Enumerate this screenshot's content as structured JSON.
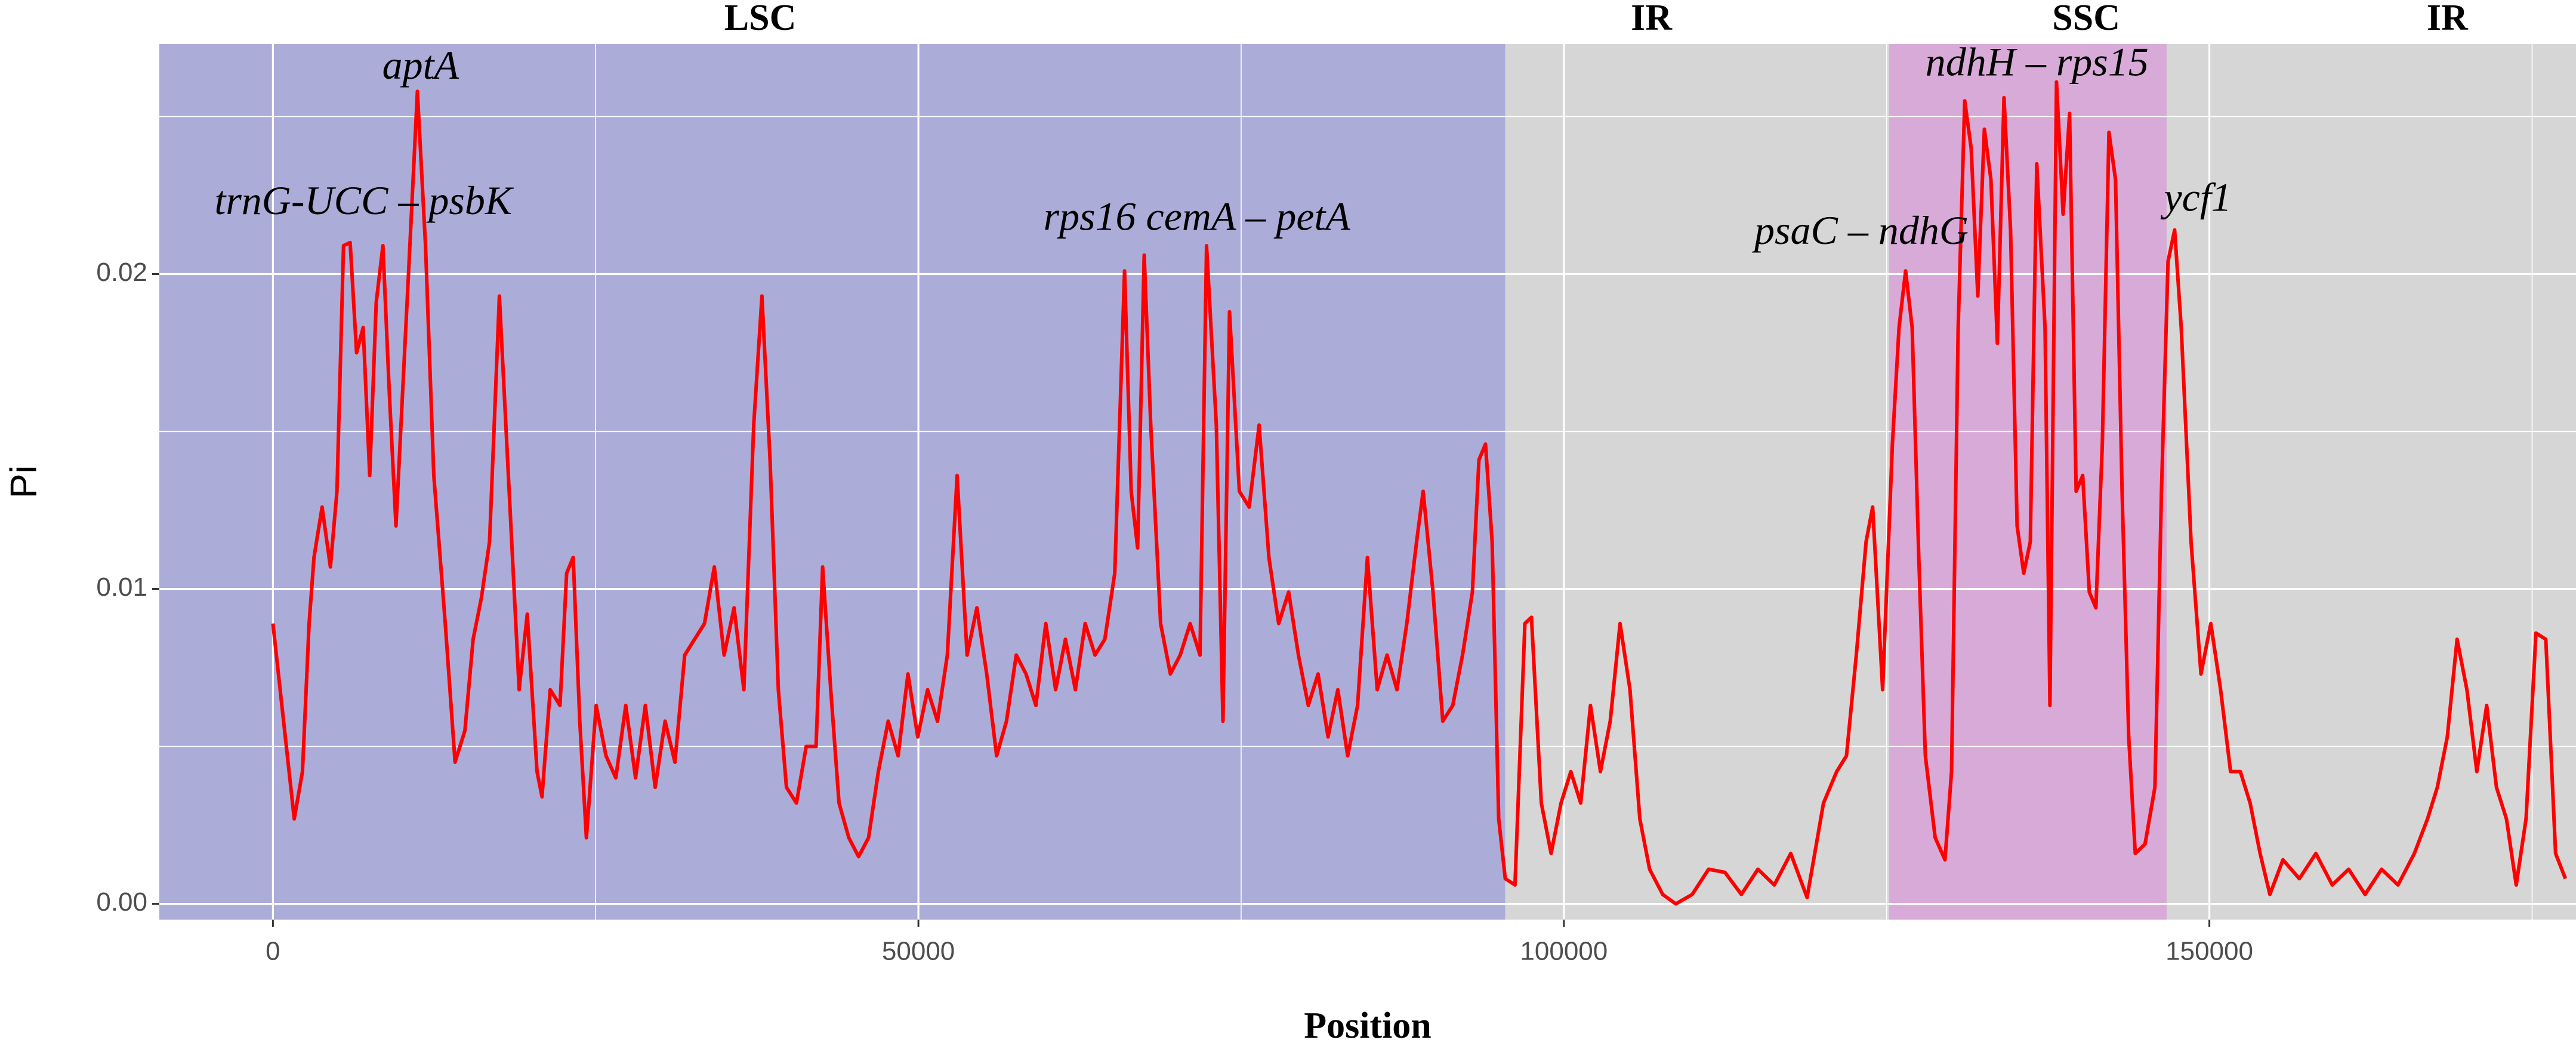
{
  "chart_data": {
    "type": "line",
    "xlabel": "Position",
    "ylabel": "Pi",
    "color": "#ff0000",
    "xlim": [
      -8800,
      178400
    ],
    "ylim": [
      -0.0005,
      0.0273
    ],
    "xticks": [
      0,
      50000,
      100000,
      150000
    ],
    "yticks": [
      {
        "value": 0,
        "label": "0.00"
      },
      0.01,
      0.02
    ],
    "x_minor_ticks": [
      25000,
      75000,
      125000,
      175000
    ],
    "y_minor_ticks": [
      0.005,
      0.015,
      0.025
    ],
    "grid": true,
    "regions": [
      {
        "name": "LSC",
        "start": -8800,
        "end": 95460,
        "label_x": 37750,
        "color": "#acacd9"
      },
      {
        "name": "IR",
        "start": 95460,
        "end": 125200,
        "label_x": 106780,
        "color": "#d6d6d6"
      },
      {
        "name": "SSC",
        "start": 125200,
        "end": 146690,
        "label_x": 140460,
        "color": "#d8aad8"
      },
      {
        "name": "IR",
        "start": 146690,
        "end": 178400,
        "label_x": 168430,
        "color": "#d6d6d6"
      }
    ],
    "annotations": [
      {
        "text": "aptA",
        "x": 11440,
        "y": 0.0265
      },
      {
        "text": "trnG-UCC – psbK",
        "x": 7000,
        "y": 0.0222
      },
      {
        "text": "rps16 cemA – petA",
        "x": 71570,
        "y": 0.0217
      },
      {
        "text": "psaC – ndhG",
        "x": 123050,
        "y": 0.02125
      },
      {
        "text": "ndhH – rps15",
        "x": 136650,
        "y": 0.0266
      },
      {
        "text": "ycf1",
        "x": 149100,
        "y": 0.0223
      }
    ],
    "x": [
      0,
      1650,
      2290,
      2800,
      3180,
      3810,
      4450,
      4960,
      5470,
      5980,
      6480,
      6990,
      7500,
      8000,
      8520,
      9020,
      9530,
      10040,
      10550,
      11190,
      11820,
      12460,
      13350,
      14110,
      14870,
      15510,
      16140,
      16780,
      17540,
      18300,
      19070,
      19700,
      20460,
      20840,
      21480,
      22240,
      22750,
      23260,
      23770,
      24280,
      25040,
      25800,
      26560,
      27330,
      28090,
      28850,
      29610,
      30380,
      31140,
      31900,
      32660,
      33430,
      34190,
      34950,
      35720,
      36480,
      37240,
      37880,
      38510,
      39150,
      39780,
      40550,
      41310,
      42070,
      42580,
      43210,
      43850,
      44610,
      45370,
      46140,
      46900,
      47660,
      48430,
      49190,
      49950,
      50710,
      51480,
      52240,
      53000,
      53770,
      54530,
      55290,
      56060,
      56820,
      57580,
      58340,
      59100,
      59870,
      60630,
      61390,
      62160,
      62920,
      63680,
      64440,
      65210,
      65970,
      66480,
      66980,
      67490,
      68000,
      68760,
      69520,
      70280,
      71050,
      71810,
      72320,
      73080,
      73590,
      74100,
      74860,
      75620,
      76390,
      77150,
      77910,
      78680,
      79440,
      80200,
      80960,
      81730,
      82490,
      83250,
      84020,
      84780,
      85540,
      86300,
      87070,
      87830,
      88590,
      89100,
      89860,
      90620,
      91390,
      92150,
      92910,
      93420,
      93930,
      94440,
      94950,
      95460,
      96210,
      96980,
      97490,
      98250,
      99010,
      99780,
      100540,
      101300,
      102060,
      102830,
      103590,
      104350,
      105120,
      105880,
      106640,
      107650,
      108670,
      109940,
      111210,
      112480,
      113750,
      115030,
      116300,
      117570,
      118840,
      120110,
      121130,
      121890,
      122650,
      123410,
      123920,
      124690,
      125450,
      125960,
      126470,
      126980,
      127490,
      128000,
      128760,
      129520,
      130030,
      130540,
      131050,
      131550,
      132060,
      132570,
      133080,
      133580,
      134090,
      134600,
      135110,
      135620,
      136130,
      136630,
      137270,
      137650,
      138160,
      138670,
      139170,
      139680,
      140190,
      140700,
      141210,
      141710,
      142220,
      142730,
      143240,
      143750,
      144260,
      145020,
      145780,
      146290,
      146800,
      147310,
      147820,
      148580,
      149350,
      150110,
      150870,
      151640,
      152400,
      153160,
      153930,
      154690,
      155700,
      156970,
      158250,
      159520,
      160790,
      162060,
      163340,
      164610,
      165880,
      166900,
      167660,
      168430,
      169190,
      169950,
      170720,
      171480,
      172240,
      173010,
      173770,
      174530,
      175300,
      176060,
      176820,
      177580
    ],
    "values": [
      0.0089,
      0.0027,
      0.0042,
      0.0089,
      0.011,
      0.0126,
      0.0107,
      0.0131,
      0.0209,
      0.021,
      0.0175,
      0.0183,
      0.0136,
      0.0191,
      0.0209,
      0.0162,
      0.012,
      0.0162,
      0.0204,
      0.0258,
      0.0209,
      0.0136,
      0.0089,
      0.0045,
      0.0055,
      0.0084,
      0.0097,
      0.0115,
      0.0193,
      0.0131,
      0.0068,
      0.0092,
      0.0042,
      0.0034,
      0.0068,
      0.0063,
      0.0105,
      0.011,
      0.0058,
      0.0021,
      0.0063,
      0.0047,
      0.004,
      0.0063,
      0.004,
      0.0063,
      0.0037,
      0.0058,
      0.0045,
      0.0079,
      0.0084,
      0.0089,
      0.0107,
      0.0079,
      0.0094,
      0.0068,
      0.0152,
      0.0193,
      0.0141,
      0.0068,
      0.0037,
      0.0032,
      0.005,
      0.005,
      0.0107,
      0.0068,
      0.0032,
      0.0021,
      0.0015,
      0.0021,
      0.0042,
      0.0058,
      0.0047,
      0.0073,
      0.0053,
      0.0068,
      0.0058,
      0.0079,
      0.0136,
      0.0079,
      0.0094,
      0.0073,
      0.0047,
      0.0058,
      0.0079,
      0.0073,
      0.0063,
      0.0089,
      0.0068,
      0.0084,
      0.0068,
      0.0089,
      0.0079,
      0.0084,
      0.0105,
      0.0201,
      0.0131,
      0.0113,
      0.0206,
      0.0152,
      0.0089,
      0.0073,
      0.0079,
      0.0089,
      0.0079,
      0.0209,
      0.0152,
      0.0058,
      0.0188,
      0.0131,
      0.0126,
      0.0152,
      0.011,
      0.0089,
      0.0099,
      0.0079,
      0.0063,
      0.0073,
      0.0053,
      0.0068,
      0.0047,
      0.0063,
      0.011,
      0.0068,
      0.0079,
      0.0068,
      0.0089,
      0.0115,
      0.0131,
      0.0099,
      0.0058,
      0.0063,
      0.0079,
      0.0099,
      0.0141,
      0.0146,
      0.0115,
      0.0027,
      0.0008,
      0.0006,
      0.0089,
      0.0091,
      0.0032,
      0.0016,
      0.0032,
      0.0042,
      0.0032,
      0.0063,
      0.0042,
      0.0058,
      0.0089,
      0.0068,
      0.0027,
      0.0011,
      0.0003,
      0,
      0.0003,
      0.0011,
      0.001,
      0.0003,
      0.0011,
      0.0006,
      0.0016,
      0.0002,
      0.0032,
      0.0042,
      0.0047,
      0.0079,
      0.0115,
      0.0126,
      0.0068,
      0.0146,
      0.0183,
      0.0201,
      0.0183,
      0.011,
      0.0047,
      0.0021,
      0.0014,
      0.0042,
      0.0183,
      0.0255,
      0.024,
      0.0193,
      0.0246,
      0.023,
      0.0178,
      0.0256,
      0.0214,
      0.012,
      0.0105,
      0.0115,
      0.0235,
      0.0183,
      0.0063,
      0.0261,
      0.0219,
      0.0251,
      0.0131,
      0.0136,
      0.0099,
      0.0094,
      0.0146,
      0.0245,
      0.023,
      0.0131,
      0.0053,
      0.0016,
      0.0019,
      0.0037,
      0.0131,
      0.0204,
      0.0214,
      0.0183,
      0.0115,
      0.0073,
      0.0089,
      0.0068,
      0.0042,
      0.0042,
      0.0032,
      0.0016,
      0.0003,
      0.0014,
      0.0008,
      0.0016,
      0.0006,
      0.0011,
      0.0003,
      0.0011,
      0.0006,
      0.0016,
      0.0027,
      0.0037,
      0.0053,
      0.0084,
      0.0068,
      0.0042,
      0.0063,
      0.0037,
      0.0027,
      0.0006,
      0.0027,
      0.0086,
      0.0084,
      0.0016,
      0.0008
    ]
  }
}
